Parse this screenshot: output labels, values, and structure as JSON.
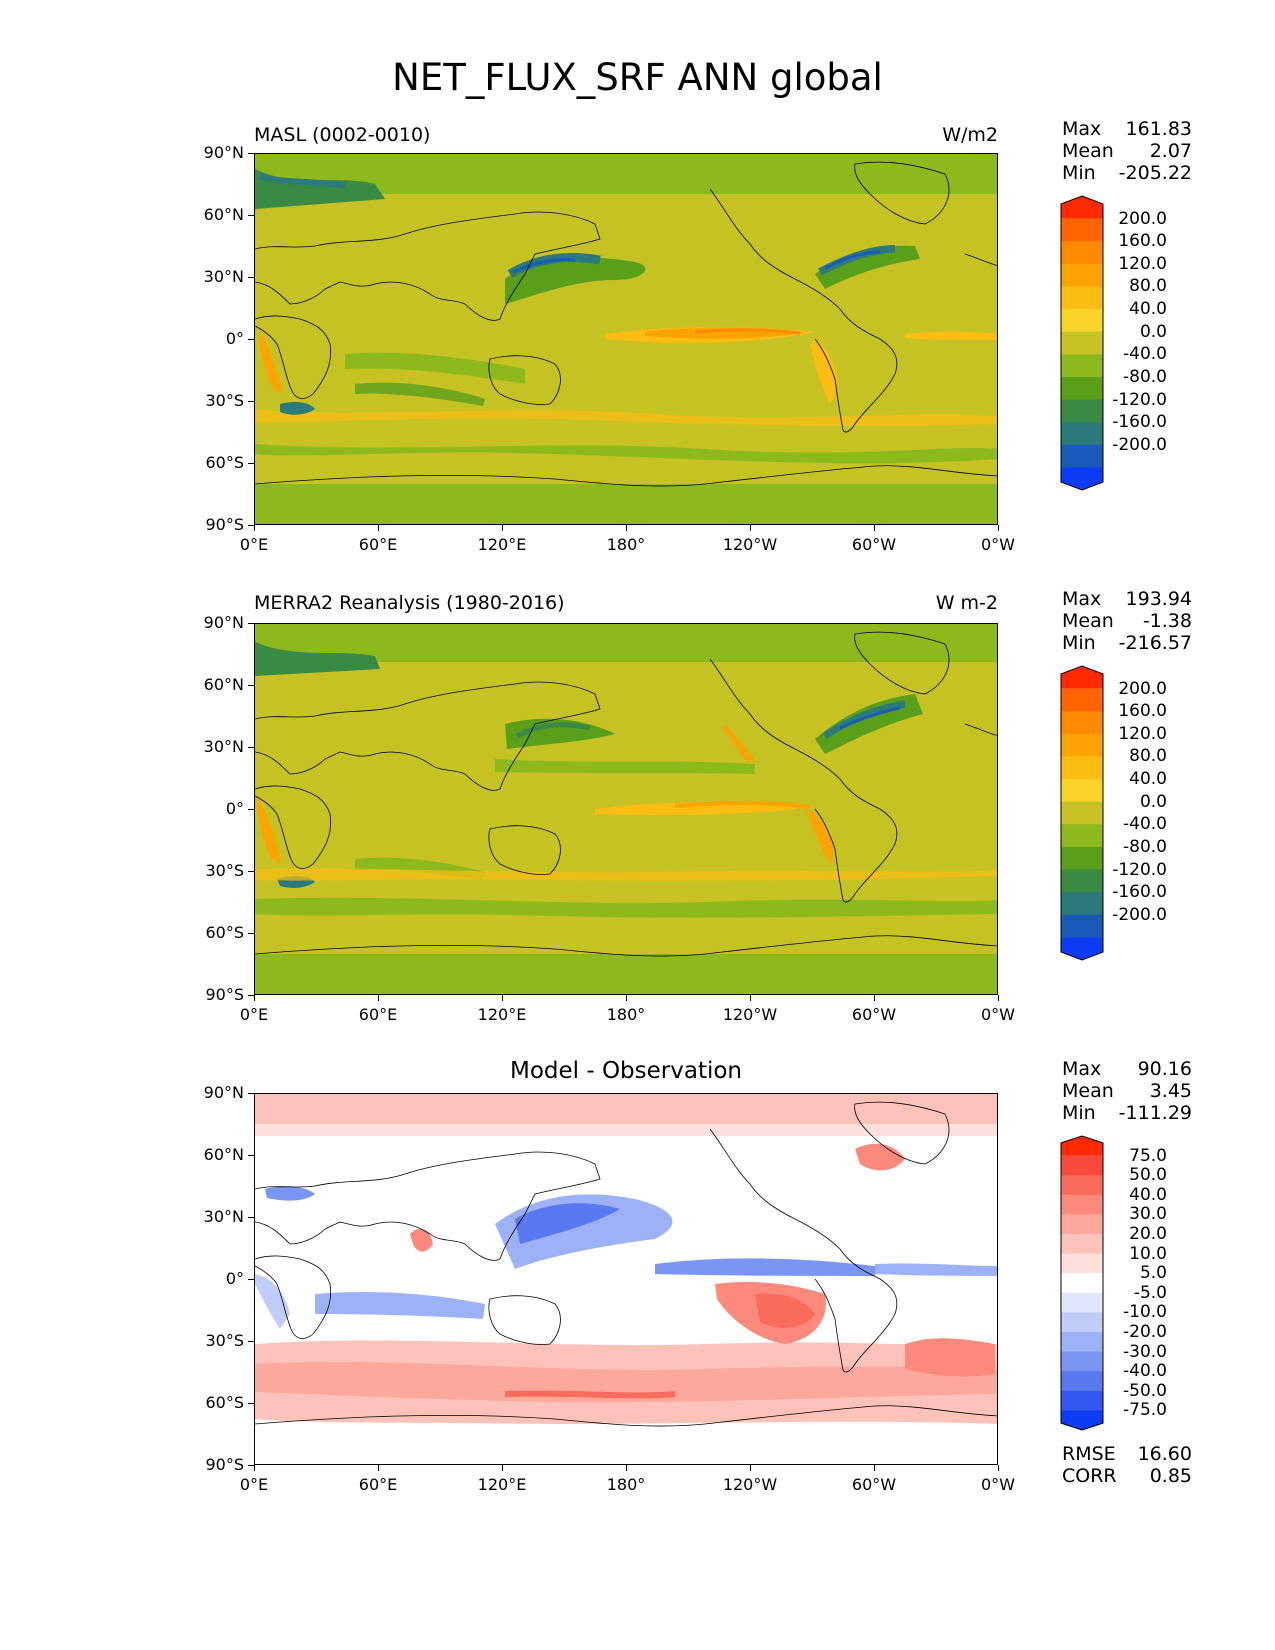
{
  "figure": {
    "title": "NET_FLUX_SRF ANN global"
  },
  "axes": {
    "y_ticks": [
      "90°N",
      "60°N",
      "30°N",
      "0°",
      "30°S",
      "60°S",
      "90°S"
    ],
    "x_ticks": [
      "0°E",
      "60°E",
      "120°E",
      "180°",
      "120°W",
      "60°W",
      "0°W"
    ]
  },
  "panels": [
    {
      "id": "model",
      "left_title": "MASL (0002-0010)",
      "right_title": "W/m2",
      "stats": {
        "max_label": "Max",
        "max": "161.83",
        "mean_label": "Mean",
        "mean": "2.07",
        "min_label": "Min",
        "min": "-205.22"
      },
      "colorbar": {
        "levels": [
          "200.0",
          "160.0",
          "120.0",
          "80.0",
          "40.0",
          "0.0",
          "-40.0",
          "-80.0",
          "-120.0",
          "-160.0",
          "-200.0"
        ],
        "colors": [
          "#ff2a00",
          "#fe6400",
          "#fd8a00",
          "#fba300",
          "#fbbd12",
          "#f8d428",
          "#c7c224",
          "#8db91c",
          "#5a9f1a",
          "#398a42",
          "#2d7a7a",
          "#1a5ab8",
          "#0c3cf4"
        ]
      }
    },
    {
      "id": "obs",
      "left_title": "MERRA2 Reanalysis (1980-2016)",
      "right_title": "W m-2",
      "stats": {
        "max_label": "Max",
        "max": "193.94",
        "mean_label": "Mean",
        "mean": "-1.38",
        "min_label": "Min",
        "min": "-216.57"
      },
      "colorbar": {
        "levels": [
          "200.0",
          "160.0",
          "120.0",
          "80.0",
          "40.0",
          "0.0",
          "-40.0",
          "-80.0",
          "-120.0",
          "-160.0",
          "-200.0"
        ],
        "colors": [
          "#ff2a00",
          "#fe6400",
          "#fd8a00",
          "#fba300",
          "#fbbd12",
          "#f8d428",
          "#c7c224",
          "#8db91c",
          "#5a9f1a",
          "#398a42",
          "#2d7a7a",
          "#1a5ab8",
          "#0c3cf4"
        ]
      }
    },
    {
      "id": "diff",
      "center_title": "Model - Observation",
      "stats": {
        "max_label": "Max",
        "max": "90.16",
        "mean_label": "Mean",
        "mean": "3.45",
        "min_label": "Min",
        "min": "-111.29"
      },
      "colorbar": {
        "levels": [
          "75.0",
          "50.0",
          "40.0",
          "30.0",
          "20.0",
          "10.0",
          "5.0",
          "-5.0",
          "-10.0",
          "-20.0",
          "-30.0",
          "-40.0",
          "-50.0",
          "-75.0"
        ],
        "colors": [
          "#ff2a00",
          "#f84a3c",
          "#fa6b5c",
          "#fb8a7c",
          "#fca89d",
          "#fdc3ba",
          "#fee0da",
          "#ffffff",
          "#dfe6fc",
          "#c1cdf9",
          "#9db2f6",
          "#7a96f2",
          "#5879ef",
          "#3459f2",
          "#0c3cf4"
        ]
      },
      "metrics": {
        "rmse_label": "RMSE",
        "rmse": "16.60",
        "corr_label": "CORR",
        "corr": "0.85"
      }
    }
  ]
}
